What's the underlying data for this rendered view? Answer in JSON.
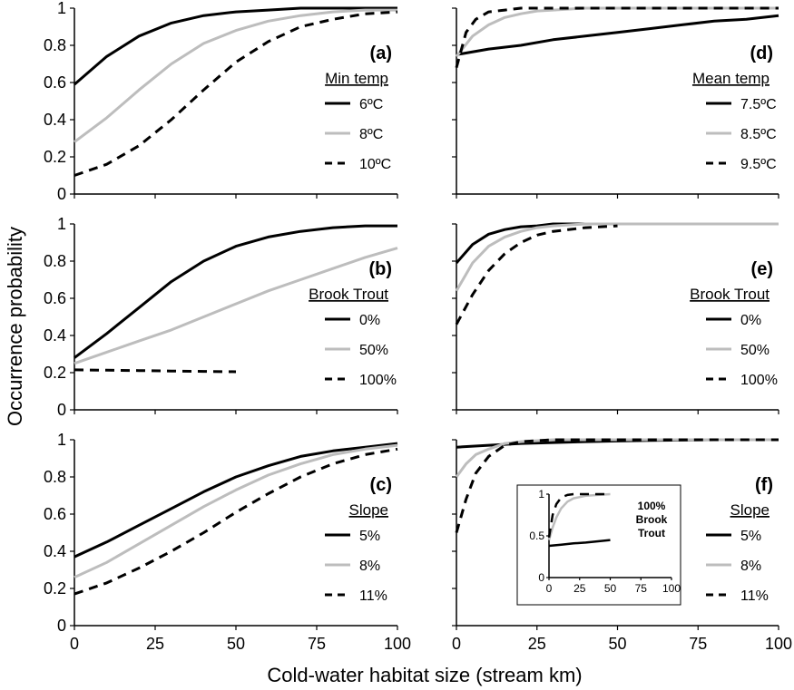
{
  "figure": {
    "ylabel": "Occurrence probability",
    "xlabel": "Cold-water habitat size (stream km)"
  },
  "chart_data": [
    {
      "panel": "(a)",
      "type": "line",
      "legend_title": "Min temp",
      "xlim": [
        0,
        100
      ],
      "ylim": [
        0,
        1
      ],
      "x_ticks": [
        "",
        "",
        "",
        "",
        ""
      ],
      "y_ticks": [
        "0",
        "0.2",
        "0.4",
        "0.6",
        "0.8",
        "1"
      ],
      "series": [
        {
          "name": "6ºC",
          "style": "solid-black",
          "x": [
            0,
            10,
            20,
            30,
            40,
            50,
            60,
            70,
            80,
            90,
            100
          ],
          "y": [
            0.59,
            0.74,
            0.85,
            0.92,
            0.96,
            0.98,
            0.99,
            1.0,
            1.0,
            1.0,
            1.0
          ]
        },
        {
          "name": "8ºC",
          "style": "solid-gray",
          "x": [
            0,
            10,
            20,
            30,
            40,
            50,
            60,
            70,
            80,
            90,
            100
          ],
          "y": [
            0.28,
            0.41,
            0.56,
            0.7,
            0.81,
            0.88,
            0.93,
            0.96,
            0.98,
            0.99,
            0.99
          ]
        },
        {
          "name": "10ºC",
          "style": "dashed-black",
          "x": [
            0,
            10,
            20,
            30,
            40,
            50,
            60,
            70,
            80,
            90,
            100
          ],
          "y": [
            0.1,
            0.16,
            0.26,
            0.4,
            0.56,
            0.71,
            0.82,
            0.9,
            0.94,
            0.97,
            0.98
          ]
        }
      ]
    },
    {
      "panel": "(d)",
      "type": "line",
      "legend_title": "Mean temp",
      "xlim": [
        0,
        100
      ],
      "ylim": [
        0,
        1
      ],
      "x_ticks": [
        "",
        "",
        "",
        "",
        ""
      ],
      "y_ticks": [
        "",
        "",
        "",
        "",
        "",
        ""
      ],
      "series": [
        {
          "name": "7.5ºC",
          "style": "solid-black",
          "x": [
            0,
            10,
            20,
            30,
            40,
            50,
            60,
            70,
            80,
            90,
            100
          ],
          "y": [
            0.75,
            0.78,
            0.8,
            0.83,
            0.85,
            0.87,
            0.89,
            0.91,
            0.93,
            0.94,
            0.96
          ]
        },
        {
          "name": "8.5ºC",
          "style": "solid-gray",
          "x": [
            0,
            5,
            10,
            15,
            20,
            25,
            30,
            40,
            50,
            60,
            70,
            80,
            90,
            100
          ],
          "y": [
            0.74,
            0.85,
            0.91,
            0.95,
            0.97,
            0.985,
            0.99,
            1.0,
            1.0,
            1.0,
            1.0,
            1.0,
            1.0,
            1.0
          ]
        },
        {
          "name": "9.5ºC",
          "style": "dashed-black",
          "x": [
            0,
            3,
            6,
            10,
            15,
            20,
            30,
            40,
            50,
            60,
            70,
            80,
            90,
            100
          ],
          "y": [
            0.68,
            0.87,
            0.94,
            0.98,
            0.99,
            1.0,
            1.0,
            1.0,
            1.0,
            1.0,
            1.0,
            1.0,
            1.0,
            1.0
          ]
        }
      ]
    },
    {
      "panel": "(b)",
      "type": "line",
      "legend_title": "Brook Trout",
      "xlim": [
        0,
        100
      ],
      "ylim": [
        0,
        1
      ],
      "x_ticks": [
        "",
        "",
        "",
        "",
        ""
      ],
      "y_ticks": [
        "0",
        "0.2",
        "0.4",
        "0.6",
        "0.8",
        "1"
      ],
      "series": [
        {
          "name": "0%",
          "style": "solid-black",
          "x": [
            0,
            10,
            20,
            30,
            40,
            50,
            60,
            70,
            80,
            90,
            100
          ],
          "y": [
            0.28,
            0.41,
            0.55,
            0.69,
            0.8,
            0.88,
            0.93,
            0.96,
            0.98,
            0.99,
            0.99
          ]
        },
        {
          "name": "50%",
          "style": "solid-gray",
          "x": [
            0,
            10,
            20,
            30,
            40,
            50,
            60,
            70,
            80,
            90,
            100
          ],
          "y": [
            0.25,
            0.31,
            0.37,
            0.43,
            0.5,
            0.57,
            0.64,
            0.7,
            0.76,
            0.82,
            0.87
          ]
        },
        {
          "name": "100%",
          "style": "dashed-black",
          "x": [
            0,
            10,
            20,
            30,
            40,
            50
          ],
          "y": [
            0.215,
            0.213,
            0.211,
            0.209,
            0.207,
            0.205
          ]
        }
      ]
    },
    {
      "panel": "(e)",
      "type": "line",
      "legend_title": "Brook Trout",
      "xlim": [
        0,
        100
      ],
      "ylim": [
        0,
        1
      ],
      "x_ticks": [
        "",
        "",
        "",
        "",
        ""
      ],
      "y_ticks": [
        "",
        "",
        "",
        "",
        "",
        ""
      ],
      "series": [
        {
          "name": "0%",
          "style": "solid-black",
          "x": [
            0,
            5,
            10,
            15,
            20,
            25,
            30,
            40,
            50
          ],
          "y": [
            0.79,
            0.89,
            0.945,
            0.97,
            0.985,
            0.99,
            1.0,
            1.0,
            1.0
          ]
        },
        {
          "name": "50%",
          "style": "solid-gray",
          "x": [
            0,
            5,
            10,
            15,
            20,
            25,
            30,
            40,
            50,
            60,
            70,
            80,
            90,
            100
          ],
          "y": [
            0.64,
            0.79,
            0.88,
            0.93,
            0.96,
            0.98,
            0.99,
            1.0,
            1.0,
            1.0,
            1.0,
            1.0,
            1.0,
            1.0
          ]
        },
        {
          "name": "100%",
          "style": "dashed-black",
          "x": [
            0,
            5,
            10,
            15,
            20,
            25,
            30,
            40,
            50
          ],
          "y": [
            0.46,
            0.62,
            0.75,
            0.84,
            0.9,
            0.94,
            0.96,
            0.98,
            0.99
          ]
        }
      ]
    },
    {
      "panel": "(c)",
      "type": "line",
      "legend_title": "Slope",
      "xlim": [
        0,
        100
      ],
      "ylim": [
        0,
        1
      ],
      "x_ticks": [
        "0",
        "25",
        "50",
        "75",
        "100"
      ],
      "y_ticks": [
        "0",
        "0.2",
        "0.4",
        "0.6",
        "0.8",
        "1"
      ],
      "series": [
        {
          "name": "5%",
          "style": "solid-black",
          "x": [
            0,
            10,
            20,
            30,
            40,
            50,
            60,
            70,
            80,
            90,
            100
          ],
          "y": [
            0.37,
            0.45,
            0.54,
            0.63,
            0.72,
            0.8,
            0.86,
            0.91,
            0.94,
            0.96,
            0.98
          ]
        },
        {
          "name": "8%",
          "style": "solid-gray",
          "x": [
            0,
            10,
            20,
            30,
            40,
            50,
            60,
            70,
            80,
            90,
            100
          ],
          "y": [
            0.26,
            0.34,
            0.44,
            0.54,
            0.64,
            0.73,
            0.81,
            0.87,
            0.92,
            0.95,
            0.97
          ]
        },
        {
          "name": "11%",
          "style": "dashed-black",
          "x": [
            0,
            10,
            20,
            30,
            40,
            50,
            60,
            70,
            80,
            90,
            100
          ],
          "y": [
            0.17,
            0.23,
            0.31,
            0.4,
            0.5,
            0.61,
            0.71,
            0.8,
            0.87,
            0.92,
            0.95
          ]
        }
      ]
    },
    {
      "panel": "(f)",
      "type": "line",
      "legend_title": "Slope",
      "xlim": [
        0,
        100
      ],
      "ylim": [
        0,
        1
      ],
      "x_ticks": [
        "0",
        "25",
        "50",
        "75",
        "100"
      ],
      "y_ticks": [
        "",
        "",
        "",
        "",
        "",
        ""
      ],
      "series": [
        {
          "name": "5%",
          "style": "solid-black",
          "x": [
            0,
            10,
            20,
            30,
            40,
            50,
            60,
            70,
            80,
            90,
            100
          ],
          "y": [
            0.96,
            0.97,
            0.98,
            0.985,
            0.99,
            0.993,
            0.996,
            0.998,
            1.0,
            1.0,
            1.0
          ]
        },
        {
          "name": "8%",
          "style": "solid-gray",
          "x": [
            0,
            3,
            6,
            10,
            15,
            20,
            30,
            40,
            50,
            60,
            70,
            80,
            90,
            100
          ],
          "y": [
            0.8,
            0.87,
            0.92,
            0.95,
            0.98,
            0.99,
            1.0,
            1.0,
            1.0,
            1.0,
            1.0,
            1.0,
            1.0,
            1.0
          ]
        },
        {
          "name": "11%",
          "style": "dashed-black",
          "x": [
            0,
            3,
            6,
            10,
            15,
            20,
            30,
            40,
            50,
            60,
            70,
            80,
            90,
            100
          ],
          "y": [
            0.5,
            0.68,
            0.82,
            0.91,
            0.97,
            0.99,
            1.0,
            1.0,
            1.0,
            1.0,
            1.0,
            1.0,
            1.0,
            1.0
          ]
        }
      ],
      "inset": {
        "label_lines": [
          "100%",
          "Brook",
          "Trout"
        ],
        "xlim": [
          0,
          100
        ],
        "ylim": [
          0,
          1
        ],
        "x_ticks": [
          "0",
          "25",
          "50",
          "75",
          "100"
        ],
        "y_ticks": [
          "0",
          "0.5",
          "1"
        ],
        "series": [
          {
            "style": "solid-black",
            "x": [
              0,
              10,
              20,
              30,
              40,
              50
            ],
            "y": [
              0.38,
              0.395,
              0.41,
              0.42,
              0.435,
              0.45
            ]
          },
          {
            "style": "solid-gray",
            "x": [
              0,
              3,
              6,
              10,
              15,
              20,
              30,
              40,
              50
            ],
            "y": [
              0.45,
              0.6,
              0.72,
              0.83,
              0.91,
              0.95,
              0.98,
              0.99,
              1.0
            ]
          },
          {
            "style": "dashed-black",
            "x": [
              0,
              3,
              6,
              10,
              15,
              20,
              30,
              40,
              50
            ],
            "y": [
              0.48,
              0.75,
              0.88,
              0.96,
              0.99,
              1.0,
              1.0,
              1.0,
              1.0
            ]
          }
        ]
      }
    }
  ]
}
